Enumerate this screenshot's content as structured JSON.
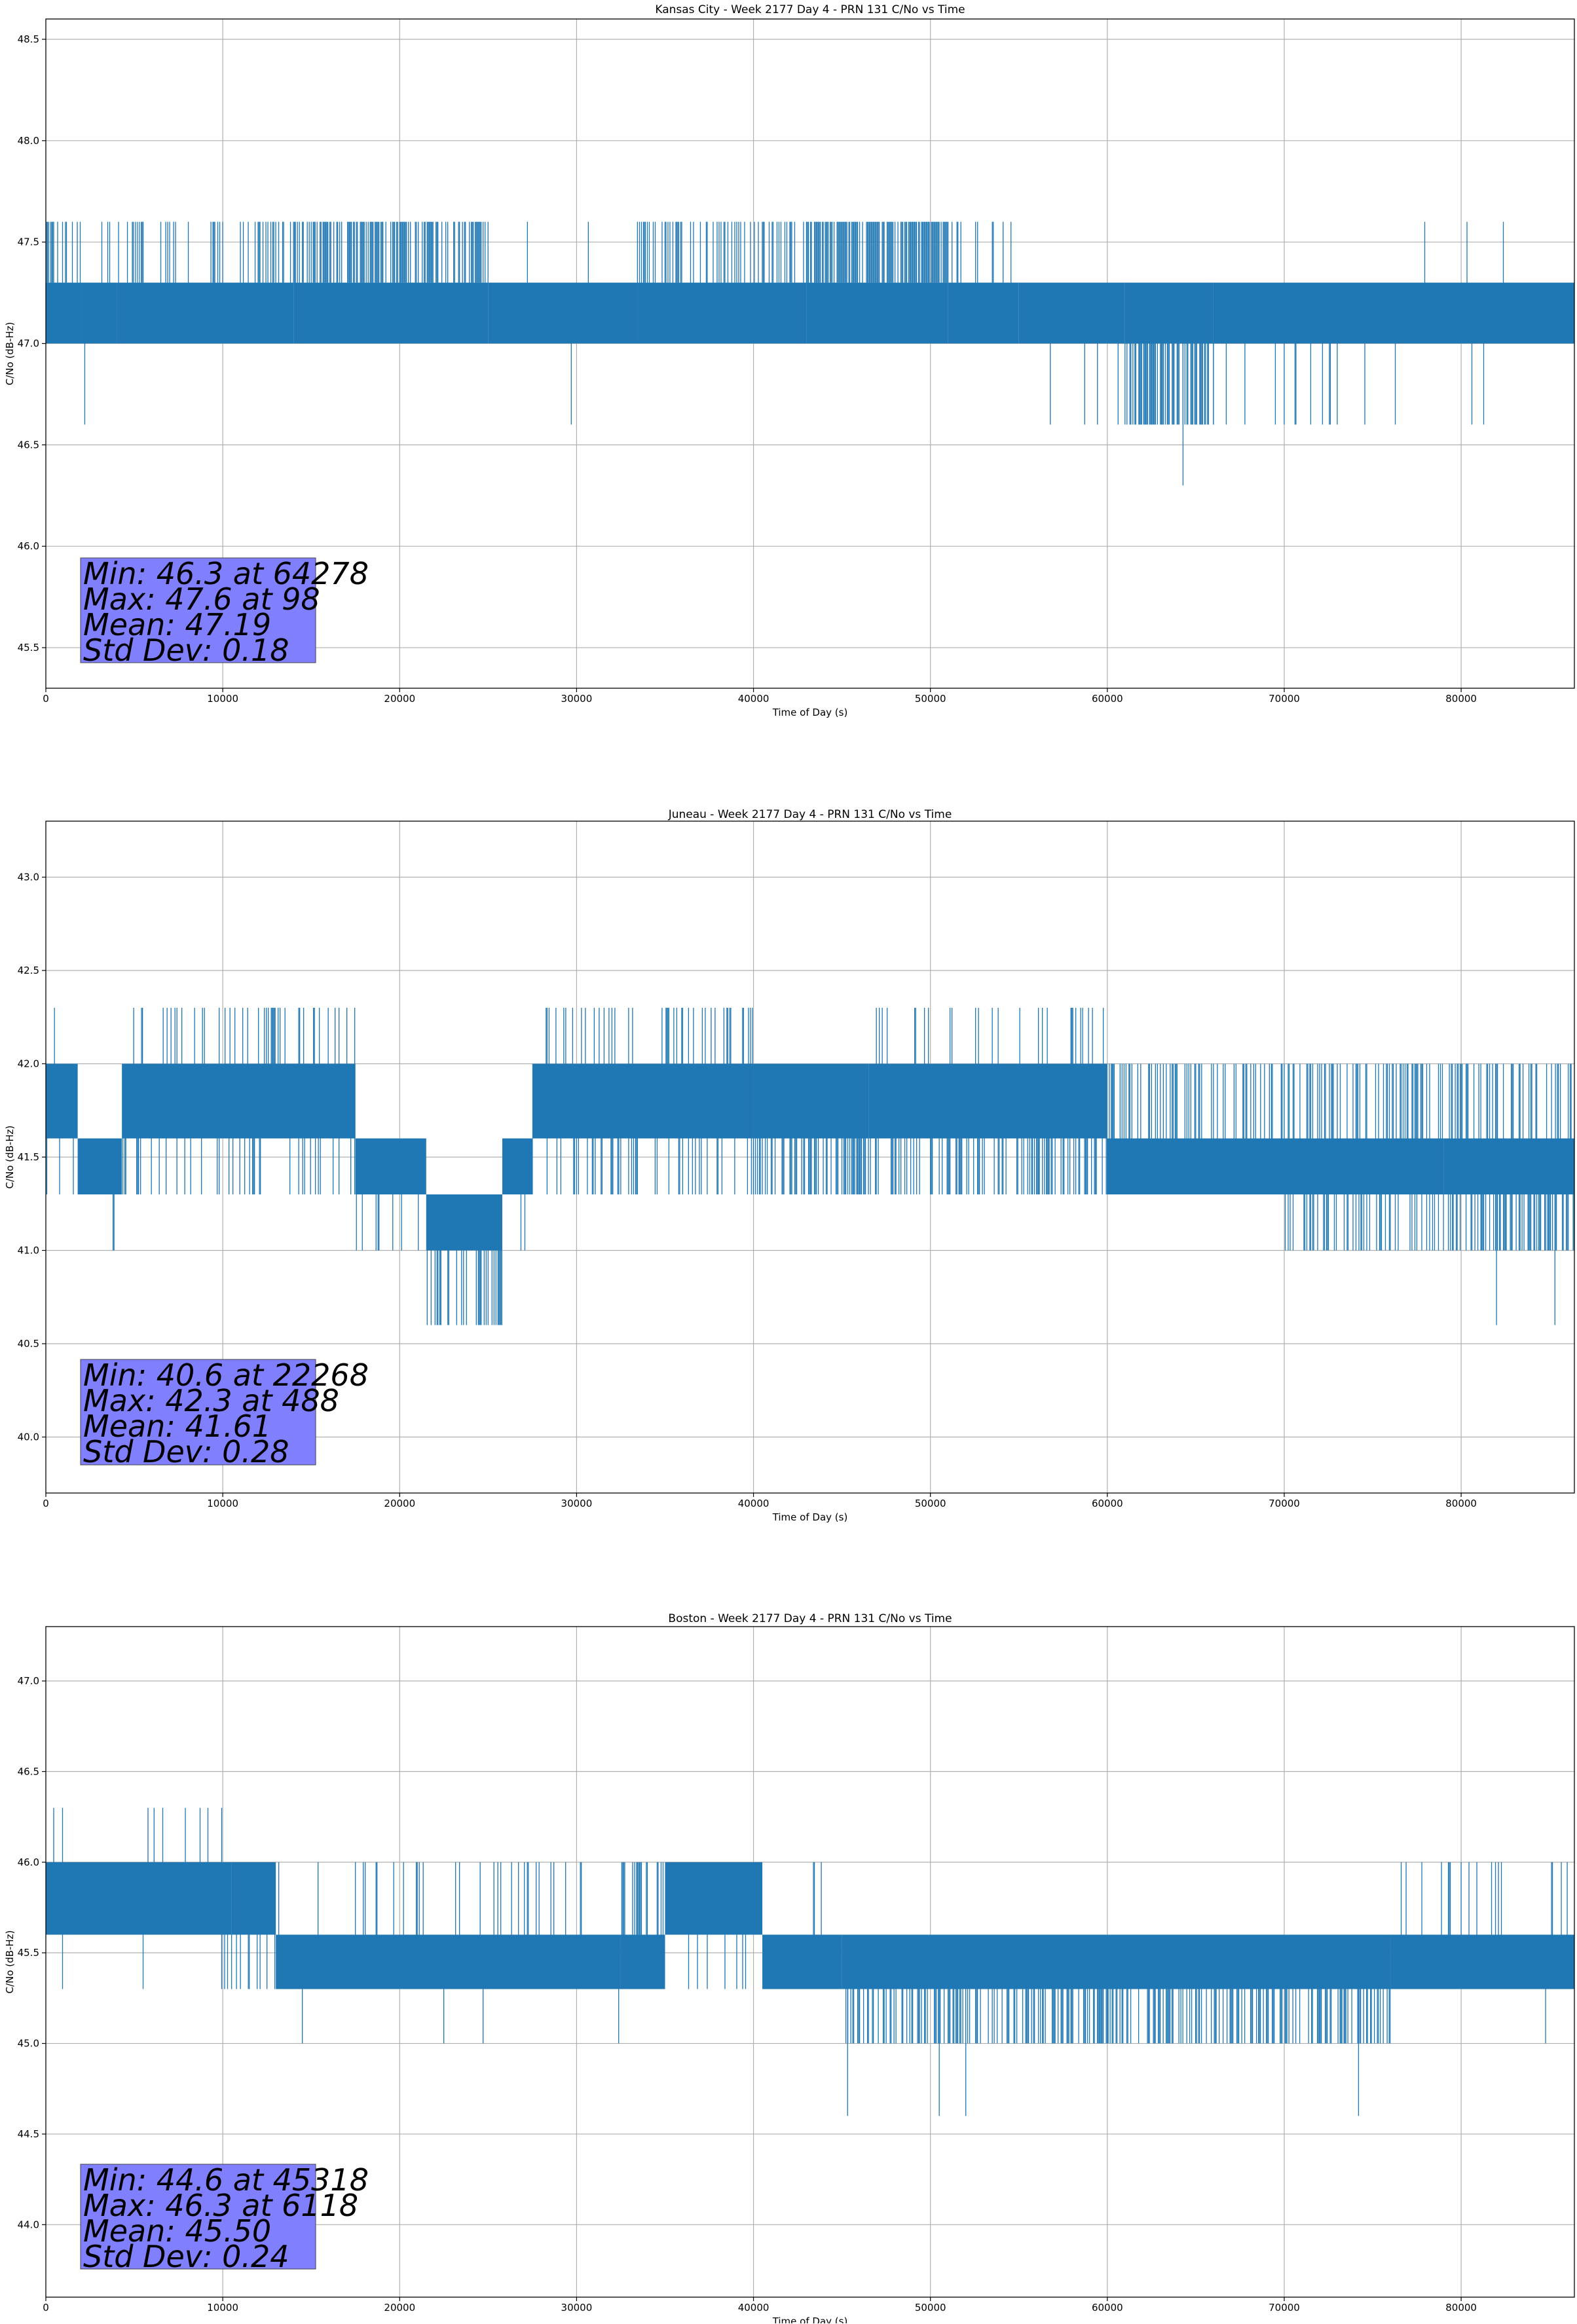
{
  "colors": {
    "series": "#1f77b4",
    "grid": "#b0b0b0",
    "stats_box": "#8080ff"
  },
  "chart_data": [
    {
      "type": "line",
      "title": "Kansas City - Week 2177 Day 4 - PRN 131 C/No vs Time",
      "xlabel": "Time of Day (s)",
      "ylabel": "C/No (dB-Hz)",
      "xlim": [
        0,
        86400
      ],
      "ylim": [
        45.3,
        48.6
      ],
      "xticks": [
        0,
        10000,
        20000,
        30000,
        40000,
        50000,
        60000,
        70000,
        80000
      ],
      "yticks": [
        45.5,
        46.0,
        46.5,
        47.0,
        47.5,
        48.0,
        48.5
      ],
      "ytick_decimals": 1,
      "grid": true,
      "series": [
        {
          "values_sampled": true,
          "segments": [
            {
              "x": [
                0,
                2000
              ],
              "low": 47.0,
              "high": 47.3,
              "up_spike": 47.6,
              "up_rate": 0.35,
              "down_spike": null,
              "down_rate": 0
            },
            {
              "x": [
                2000,
                4000
              ],
              "low": 47.0,
              "high": 47.3,
              "up_spike": 47.6,
              "up_rate": 0.05,
              "down_spike": null,
              "down_rate": 0
            },
            {
              "x": [
                4000,
                14000
              ],
              "low": 47.0,
              "high": 47.3,
              "up_spike": 47.6,
              "up_rate": 0.25,
              "down_spike": null,
              "down_rate": 0
            },
            {
              "x": [
                14000,
                25000
              ],
              "low": 47.0,
              "high": 47.3,
              "up_spike": 47.6,
              "up_rate": 0.55,
              "down_spike": null,
              "down_rate": 0
            },
            {
              "x": [
                25000,
                33500
              ],
              "low": 47.0,
              "high": 47.3,
              "up_spike": 47.6,
              "up_rate": 0.01,
              "down_spike": null,
              "down_rate": 0
            },
            {
              "x": [
                33500,
                43000
              ],
              "low": 47.0,
              "high": 47.3,
              "up_spike": 47.6,
              "up_rate": 0.35,
              "down_spike": null,
              "down_rate": 0
            },
            {
              "x": [
                43000,
                51000
              ],
              "low": 47.0,
              "high": 47.3,
              "up_spike": 47.6,
              "up_rate": 0.75,
              "down_spike": null,
              "down_rate": 0
            },
            {
              "x": [
                51000,
                55000
              ],
              "low": 47.0,
              "high": 47.3,
              "up_spike": 47.6,
              "up_rate": 0.1,
              "down_spike": null,
              "down_rate": 0
            },
            {
              "x": [
                55000,
                61000
              ],
              "low": 47.0,
              "high": 47.3,
              "up_spike": null,
              "up_rate": 0,
              "down_spike": 46.6,
              "down_rate": 0.05
            },
            {
              "x": [
                61000,
                66000
              ],
              "low": 47.0,
              "high": 47.3,
              "up_spike": null,
              "up_rate": 0,
              "down_spike": 46.6,
              "down_rate": 0.6
            },
            {
              "x": [
                66000,
                74000
              ],
              "low": 47.0,
              "high": 47.3,
              "up_spike": null,
              "up_rate": 0,
              "down_spike": 46.6,
              "down_rate": 0.05
            },
            {
              "x": [
                74000,
                86400
              ],
              "low": 47.0,
              "high": 47.3,
              "up_spike": 47.6,
              "up_rate": 0.01,
              "down_spike": 46.6,
              "down_rate": 0.01
            }
          ],
          "extreme_points": [
            {
              "x": 98,
              "y": 47.6
            },
            {
              "x": 2200,
              "y": 46.6
            },
            {
              "x": 29700,
              "y": 46.6
            },
            {
              "x": 64278,
              "y": 46.3
            }
          ]
        }
      ],
      "stats": [
        "Min: 46.3 at 64278",
        "Max: 47.6 at 98",
        "Mean: 47.19",
        "Std Dev: 0.18"
      ]
    },
    {
      "type": "line",
      "title": "Juneau - Week 2177 Day 4 - PRN 131 C/No vs Time",
      "xlabel": "Time of Day (s)",
      "ylabel": "C/No (dB-Hz)",
      "xlim": [
        0,
        86400
      ],
      "ylim": [
        39.7,
        43.3
      ],
      "xticks": [
        0,
        10000,
        20000,
        30000,
        40000,
        50000,
        60000,
        70000,
        80000
      ],
      "yticks": [
        40.0,
        40.5,
        41.0,
        41.5,
        42.0,
        42.5,
        43.0
      ],
      "ytick_decimals": 1,
      "grid": true,
      "series": [
        {
          "values_sampled": true,
          "segments": [
            {
              "x": [
                0,
                1800
              ],
              "low": 41.6,
              "high": 42.0,
              "up_spike": 42.3,
              "up_rate": 0.1,
              "down_spike": 41.3,
              "down_rate": 0.1
            },
            {
              "x": [
                1800,
                4300
              ],
              "low": 41.3,
              "high": 41.6,
              "up_spike": null,
              "up_rate": 0,
              "down_spike": 41.0,
              "down_rate": 0.1
            },
            {
              "x": [
                4300,
                17500
              ],
              "low": 41.6,
              "high": 42.0,
              "up_spike": 42.3,
              "up_rate": 0.2,
              "down_spike": 41.3,
              "down_rate": 0.15
            },
            {
              "x": [
                17500,
                21500
              ],
              "low": 41.3,
              "high": 41.6,
              "up_spike": null,
              "up_rate": 0,
              "down_spike": 41.0,
              "down_rate": 0.1
            },
            {
              "x": [
                21500,
                25800
              ],
              "low": 41.0,
              "high": 41.3,
              "up_spike": null,
              "up_rate": 0,
              "down_spike": 40.6,
              "down_rate": 0.35
            },
            {
              "x": [
                25800,
                27500
              ],
              "low": 41.3,
              "high": 41.6,
              "up_spike": null,
              "up_rate": 0,
              "down_spike": 41.0,
              "down_rate": 0.05
            },
            {
              "x": [
                27500,
                40000
              ],
              "low": 41.6,
              "high": 42.0,
              "up_spike": 42.3,
              "up_rate": 0.2,
              "down_spike": 41.3,
              "down_rate": 0.25
            },
            {
              "x": [
                40000,
                46500
              ],
              "low": 41.6,
              "high": 42.0,
              "up_spike": null,
              "up_rate": 0,
              "down_spike": 41.3,
              "down_rate": 0.5
            },
            {
              "x": [
                46500,
                60000
              ],
              "low": 41.6,
              "high": 42.0,
              "up_spike": 42.3,
              "up_rate": 0.15,
              "down_spike": 41.3,
              "down_rate": 0.35
            },
            {
              "x": [
                60000,
                70000
              ],
              "low": 41.3,
              "high": 41.6,
              "up_spike": 42.0,
              "up_rate": 0.3,
              "down_spike": null,
              "down_rate": 0
            },
            {
              "x": [
                70000,
                79000
              ],
              "low": 41.3,
              "high": 41.6,
              "up_spike": 42.0,
              "up_rate": 0.35,
              "down_spike": 41.0,
              "down_rate": 0.3
            },
            {
              "x": [
                79000,
                86400
              ],
              "low": 41.3,
              "high": 41.6,
              "up_spike": 42.0,
              "up_rate": 0.3,
              "down_spike": 41.0,
              "down_rate": 0.4
            }
          ],
          "extreme_points": [
            {
              "x": 488,
              "y": 42.3
            },
            {
              "x": 22268,
              "y": 40.6
            },
            {
              "x": 82000,
              "y": 40.6
            },
            {
              "x": 85300,
              "y": 40.6
            }
          ]
        }
      ],
      "stats": [
        "Min: 40.6 at 22268",
        "Max: 42.3 at 488",
        "Mean: 41.61",
        "Std Dev: 0.28"
      ]
    },
    {
      "type": "line",
      "title": "Boston - Week 2177 Day 4 - PRN 131 C/No vs Time",
      "xlabel": "Time of Day (s)",
      "ylabel": "C/No (dB-Hz)",
      "xlim": [
        0,
        86400
      ],
      "ylim": [
        43.6,
        47.3
      ],
      "xticks": [
        0,
        10000,
        20000,
        30000,
        40000,
        50000,
        60000,
        70000,
        80000
      ],
      "yticks": [
        44.0,
        44.5,
        45.0,
        45.5,
        46.0,
        46.5,
        47.0
      ],
      "ytick_decimals": 1,
      "grid": true,
      "series": [
        {
          "values_sampled": true,
          "segments": [
            {
              "x": [
                0,
                10500
              ],
              "low": 45.6,
              "high": 46.0,
              "up_spike": 46.3,
              "up_rate": 0.05,
              "down_spike": 45.3,
              "down_rate": 0.02
            },
            {
              "x": [
                10500,
                13000
              ],
              "low": 45.6,
              "high": 46.0,
              "up_spike": null,
              "up_rate": 0,
              "down_spike": 45.3,
              "down_rate": 0.2
            },
            {
              "x": [
                13000,
                32500
              ],
              "low": 45.3,
              "high": 45.6,
              "up_spike": 46.0,
              "up_rate": 0.1,
              "down_spike": 45.0,
              "down_rate": 0.01
            },
            {
              "x": [
                32500,
                35000
              ],
              "low": 45.3,
              "high": 45.6,
              "up_spike": 46.0,
              "up_rate": 0.4,
              "down_spike": null,
              "down_rate": 0
            },
            {
              "x": [
                35000,
                40500
              ],
              "low": 45.6,
              "high": 46.0,
              "up_spike": null,
              "up_rate": 0,
              "down_spike": 45.3,
              "down_rate": 0.1
            },
            {
              "x": [
                40500,
                45000
              ],
              "low": 45.3,
              "high": 45.6,
              "up_spike": 46.0,
              "up_rate": 0.05,
              "down_spike": null,
              "down_rate": 0
            },
            {
              "x": [
                45000,
                76000
              ],
              "low": 45.3,
              "high": 45.6,
              "up_spike": null,
              "up_rate": 0,
              "down_spike": 45.0,
              "down_rate": 0.4
            },
            {
              "x": [
                76000,
                86400
              ],
              "low": 45.3,
              "high": 45.6,
              "up_spike": 46.0,
              "up_rate": 0.08,
              "down_spike": 45.0,
              "down_rate": 0.02
            }
          ],
          "extreme_points": [
            {
              "x": 6118,
              "y": 46.3
            },
            {
              "x": 45318,
              "y": 44.6
            },
            {
              "x": 50500,
              "y": 44.6
            },
            {
              "x": 52000,
              "y": 44.6
            },
            {
              "x": 74200,
              "y": 44.6
            }
          ]
        }
      ],
      "stats": [
        "Min: 44.6 at 45318",
        "Max: 46.3 at 6118",
        "Mean: 45.50",
        "Std Dev: 0.24"
      ]
    }
  ]
}
